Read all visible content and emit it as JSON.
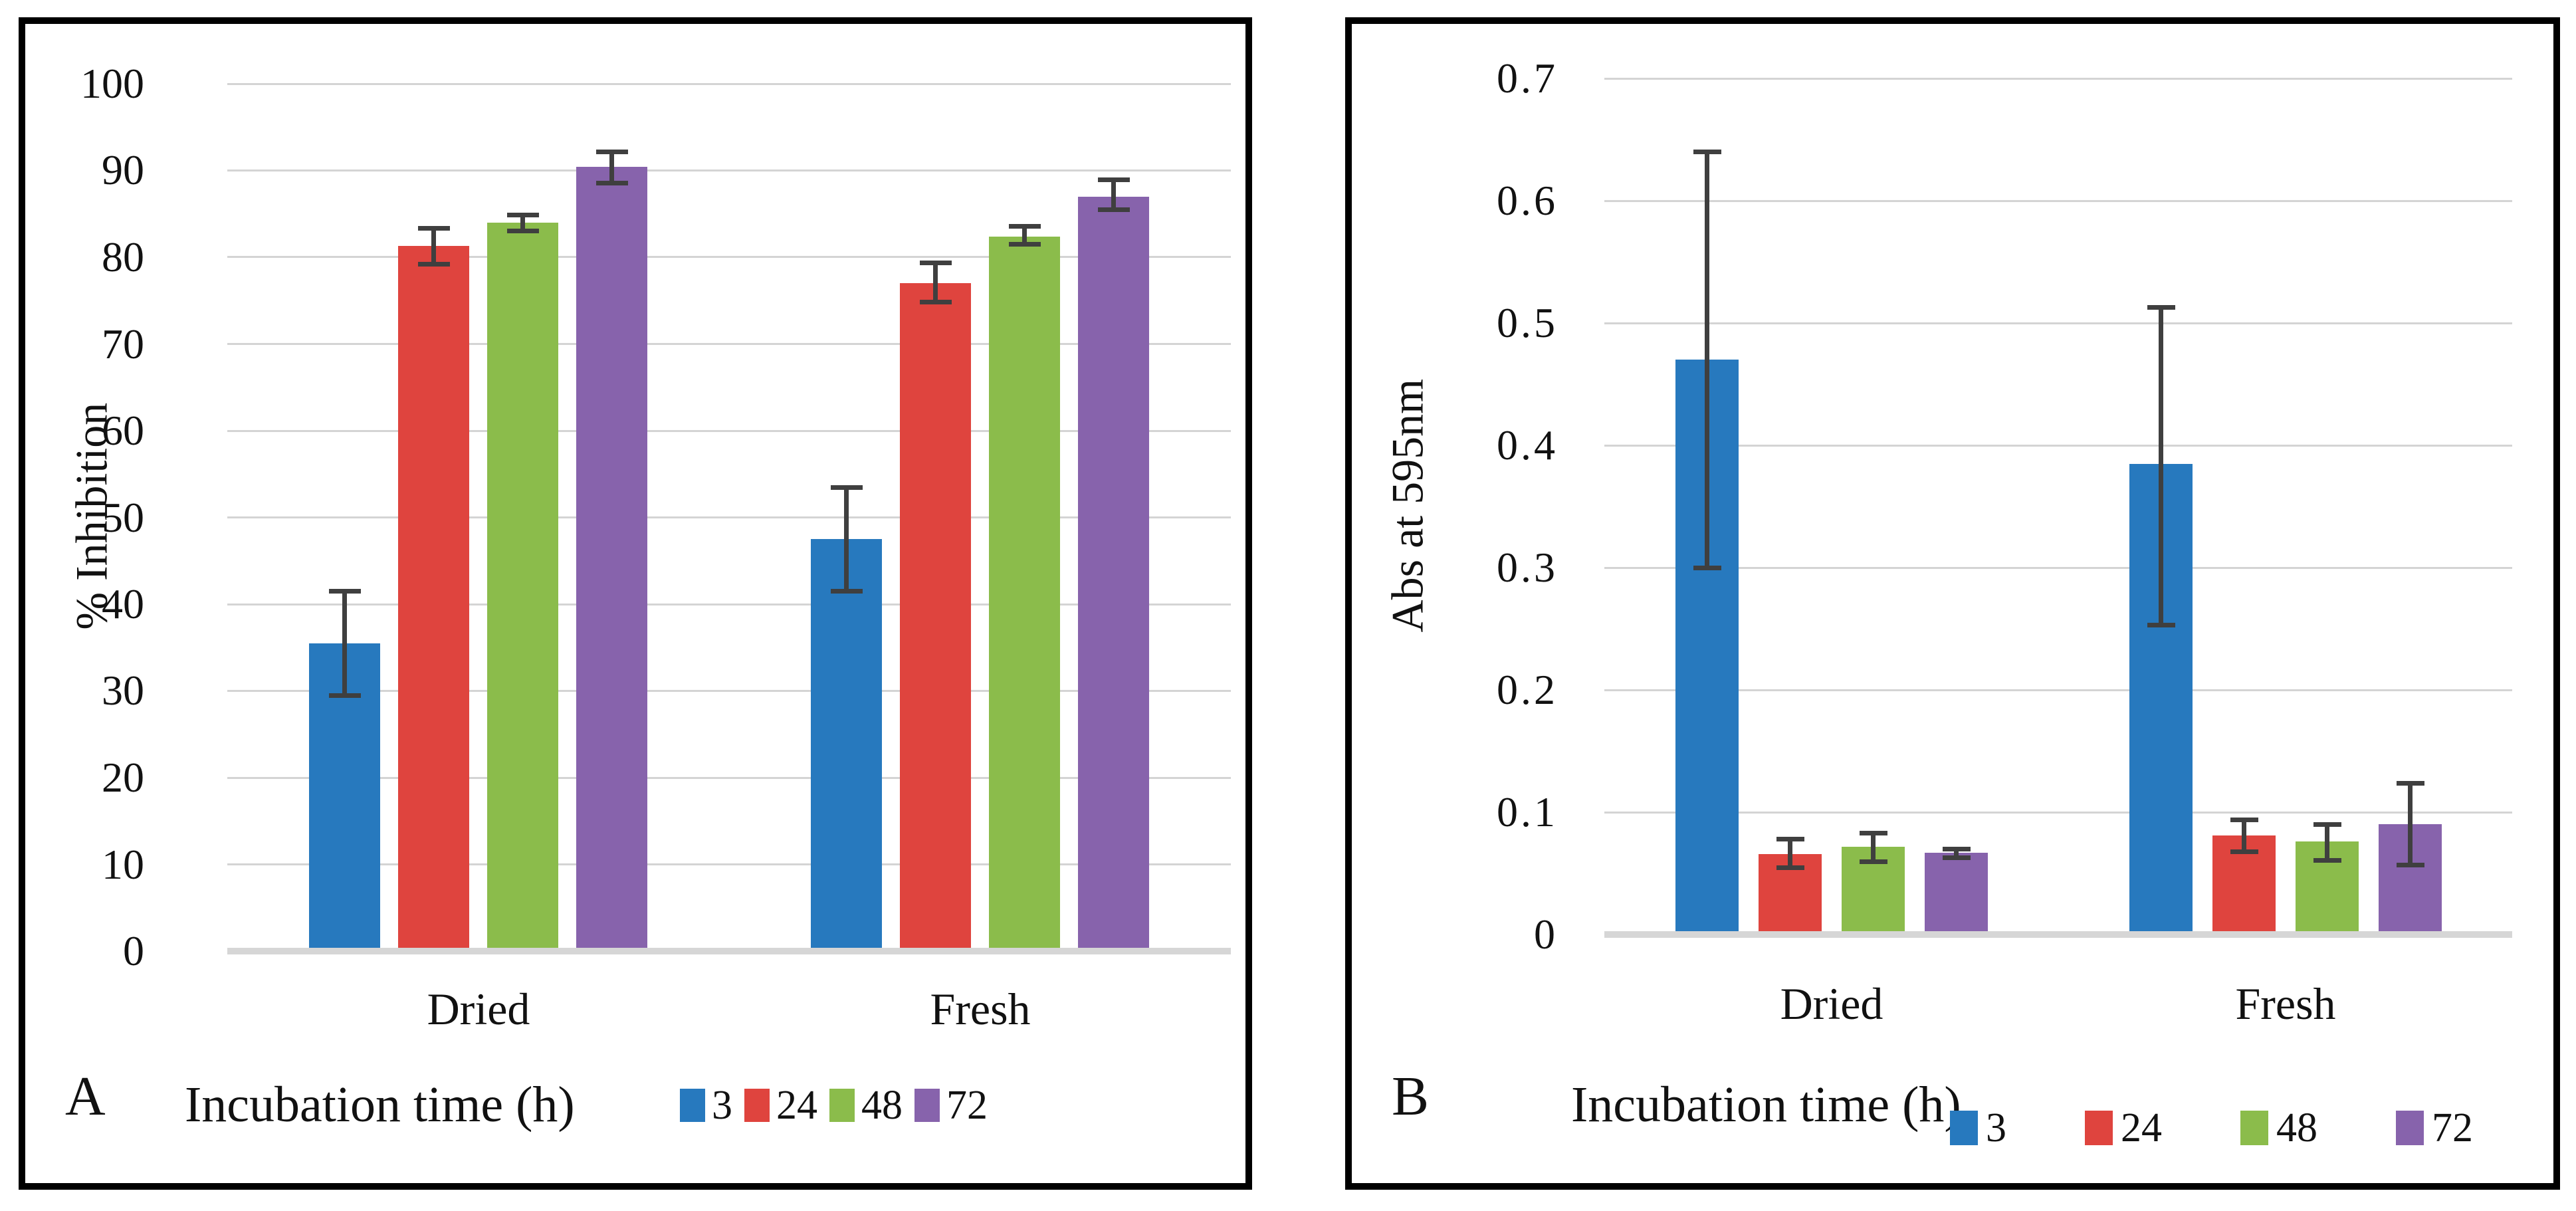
{
  "figure": {
    "description": "Two-panel bar chart figure with error bars",
    "panel_labels": [
      "A",
      "B"
    ]
  },
  "colors": {
    "series_3": "#2779BE",
    "series_24": "#DF443E",
    "series_48": "#8BBC4B",
    "series_72": "#8763AC",
    "error_bar": "#3F3F3F",
    "gridline": "#D4D4D4",
    "axis_baseline": "#D6D6D6",
    "panel_border": "#000000",
    "text": "#111111"
  },
  "chart_data": [
    {
      "panel_label": "A",
      "type": "bar",
      "title": "",
      "ylabel": "% Inhibition",
      "xlabel": "",
      "legend_title": "Incubation time (h)",
      "ylim": [
        0,
        100
      ],
      "ytick_step": 10,
      "ytick_labels": [
        "0",
        "10",
        "20",
        "30",
        "40",
        "50",
        "60",
        "70",
        "80",
        "90",
        "100"
      ],
      "categories": [
        "Dried",
        "Fresh"
      ],
      "grid": true,
      "legend_position": "bottom",
      "series": [
        {
          "name": "3",
          "color": "#2779BE",
          "values": [
            35.5,
            47.5
          ],
          "error_low": [
            29.5,
            41.5
          ],
          "error_high": [
            41.5,
            53.5
          ]
        },
        {
          "name": "24",
          "color": "#DF443E",
          "values": [
            81.3,
            77.0
          ],
          "error_low": [
            79.2,
            74.9
          ],
          "error_high": [
            83.4,
            79.4
          ]
        },
        {
          "name": "48",
          "color": "#8BBC4B",
          "values": [
            84.0,
            82.4
          ],
          "error_low": [
            83.1,
            81.5
          ],
          "error_high": [
            84.9,
            83.6
          ]
        },
        {
          "name": "72",
          "color": "#8763AC",
          "values": [
            90.4,
            87.0
          ],
          "error_low": [
            88.6,
            85.5
          ],
          "error_high": [
            92.2,
            89.0
          ]
        }
      ]
    },
    {
      "panel_label": "B",
      "type": "bar",
      "title": "",
      "ylabel": "Abs at 595nm",
      "xlabel": "",
      "legend_title": "Incubation time (h)",
      "ylim": [
        0,
        0.7
      ],
      "ytick_step": 0.1,
      "ytick_labels": [
        "0",
        "0.1",
        "0.2",
        "0.3",
        "0.4",
        "0.5",
        "0.6",
        "0.7"
      ],
      "categories": [
        "Dried",
        "Fresh"
      ],
      "grid": true,
      "legend_position": "bottom",
      "series": [
        {
          "name": "3",
          "color": "#2779BE",
          "values": [
            0.47,
            0.385
          ],
          "error_low": [
            0.3,
            0.253
          ],
          "error_high": [
            0.64,
            0.513
          ]
        },
        {
          "name": "24",
          "color": "#DF443E",
          "values": [
            0.066,
            0.081
          ],
          "error_low": [
            0.055,
            0.068
          ],
          "error_high": [
            0.078,
            0.094
          ]
        },
        {
          "name": "48",
          "color": "#8BBC4B",
          "values": [
            0.072,
            0.076
          ],
          "error_low": [
            0.06,
            0.061
          ],
          "error_high": [
            0.083,
            0.09
          ]
        },
        {
          "name": "72",
          "color": "#8763AC",
          "values": [
            0.067,
            0.09
          ],
          "error_low": [
            0.063,
            0.057
          ],
          "error_high": [
            0.07,
            0.124
          ]
        }
      ]
    }
  ]
}
